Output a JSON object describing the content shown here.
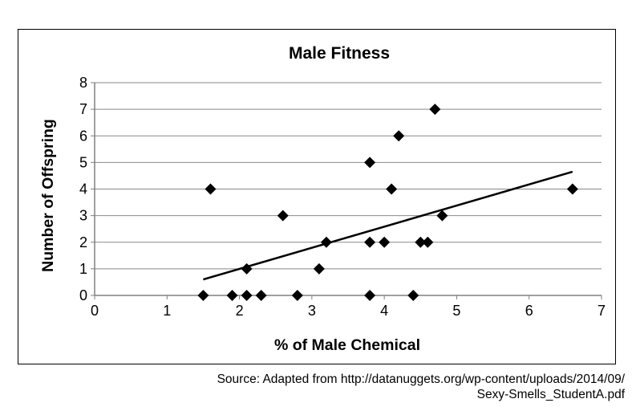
{
  "chart_data": {
    "type": "scatter",
    "title": "Male Fitness",
    "xlabel": "% of Male Chemical",
    "ylabel": "Number of Offspring",
    "xlim": [
      0,
      7
    ],
    "ylim": [
      0,
      8
    ],
    "xticks": [
      "0",
      "1",
      "2",
      "3",
      "4",
      "5",
      "6",
      "7"
    ],
    "yticks": [
      "0",
      "1",
      "2",
      "3",
      "4",
      "5",
      "6",
      "7",
      "8"
    ],
    "grid": "horizontal",
    "marker": "diamond",
    "marker_color": "#000000",
    "points": [
      {
        "x": 1.5,
        "y": 0
      },
      {
        "x": 1.6,
        "y": 4
      },
      {
        "x": 1.9,
        "y": 0
      },
      {
        "x": 2.1,
        "y": 0
      },
      {
        "x": 2.1,
        "y": 1
      },
      {
        "x": 2.3,
        "y": 0
      },
      {
        "x": 2.6,
        "y": 3
      },
      {
        "x": 2.8,
        "y": 0
      },
      {
        "x": 3.1,
        "y": 1
      },
      {
        "x": 3.2,
        "y": 2
      },
      {
        "x": 3.8,
        "y": 0
      },
      {
        "x": 3.8,
        "y": 2
      },
      {
        "x": 3.8,
        "y": 5
      },
      {
        "x": 4.0,
        "y": 2
      },
      {
        "x": 4.1,
        "y": 4
      },
      {
        "x": 4.2,
        "y": 6
      },
      {
        "x": 4.4,
        "y": 0
      },
      {
        "x": 4.5,
        "y": 2
      },
      {
        "x": 4.6,
        "y": 2
      },
      {
        "x": 4.7,
        "y": 7
      },
      {
        "x": 4.8,
        "y": 3
      },
      {
        "x": 6.6,
        "y": 4
      }
    ],
    "trendline": {
      "x": [
        1.5,
        6.6
      ],
      "y": [
        0.6,
        4.65
      ]
    }
  },
  "source": {
    "line1": "Source: Adapted from http://datanuggets.org/wp-content/uploads/2014/09/",
    "line2": "Sexy-Smells_StudentA.pdf"
  }
}
